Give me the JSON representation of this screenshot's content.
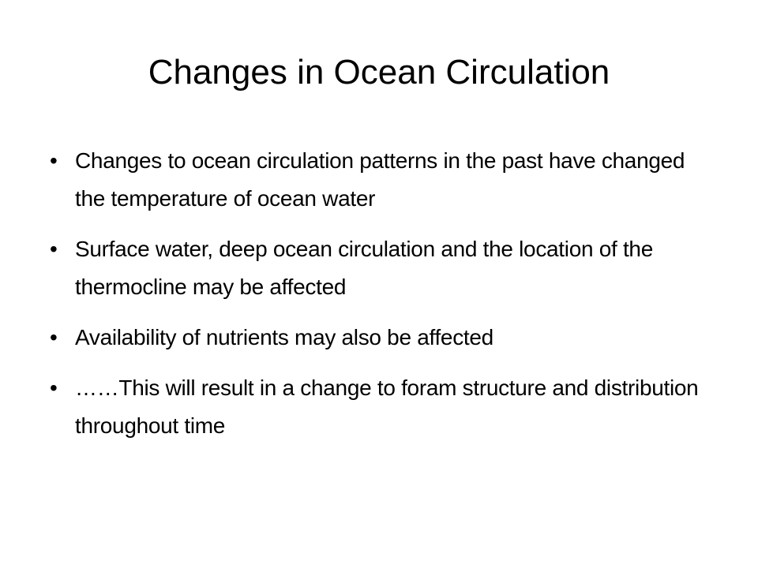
{
  "slide": {
    "title": "Changes in Ocean Circulation",
    "bullets": [
      "Changes to ocean circulation patterns in the past have changed the temperature of ocean water",
      "Surface water, deep ocean circulation and the location of the thermocline may be affected",
      "Availability of nutrients may also be affected",
      "……This will result in a change to foram structure and distribution throughout time"
    ]
  }
}
